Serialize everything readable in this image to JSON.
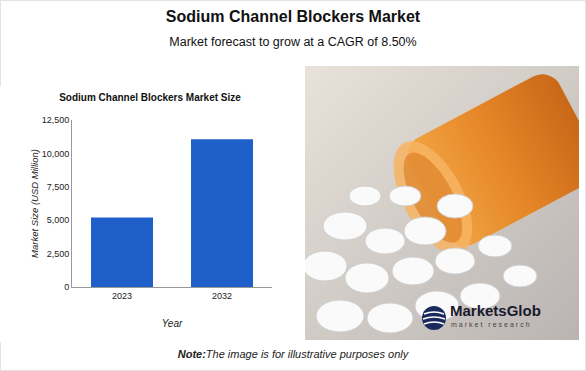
{
  "header": {
    "title": "Sodium Channel Blockers Market",
    "subtitle": "Market forecast to grow at a CAGR of 8.50%"
  },
  "chart_data": {
    "type": "bar",
    "title": "Sodium Channel Blockers Market Size",
    "categories": [
      "2023",
      "2032"
    ],
    "values": [
      5200,
      11050
    ],
    "color": "#1f5fc9",
    "x_label": "Year",
    "y_label": "Market Size (USD Million)",
    "ylim": [
      0,
      12500
    ],
    "yticks": [
      0,
      {
        "value": 2500,
        "label": "2,500"
      },
      {
        "value": 5000,
        "label": "5,000"
      },
      {
        "value": 7500,
        "label": "7,500"
      },
      {
        "value": 10000,
        "label": "10,000"
      },
      {
        "value": 12500,
        "label": "12,500"
      }
    ],
    "grid": false
  },
  "logo": {
    "name": "MarketsGlob",
    "tagline": "market research"
  },
  "note": {
    "label": "Note:",
    "text": "The image is for illustrative purposes only"
  }
}
